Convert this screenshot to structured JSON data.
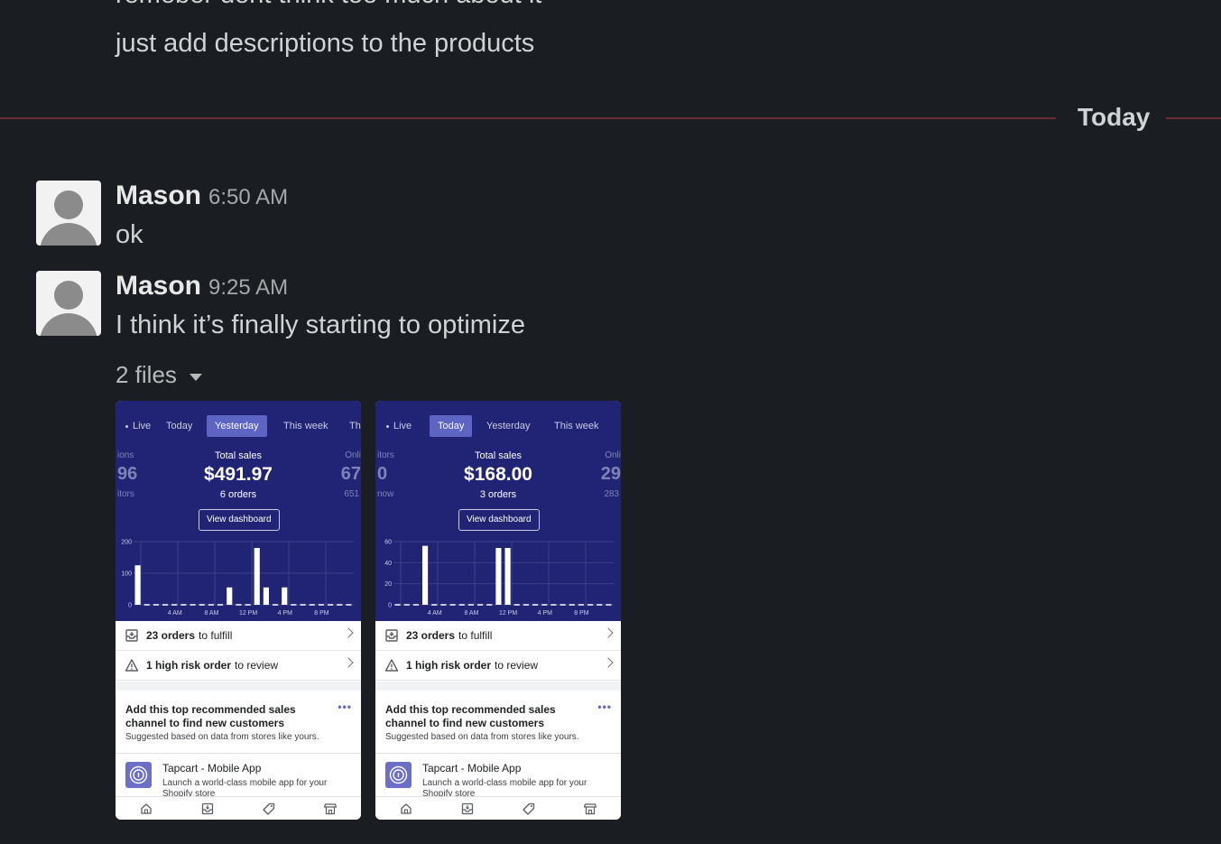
{
  "previous_messages": {
    "line1": "remeber dont think too much about it",
    "line2": "just add descriptions to the products"
  },
  "divider": {
    "label": "Today"
  },
  "messages": [
    {
      "author": "Mason",
      "time": "6:50 AM",
      "text": "ok"
    },
    {
      "author": "Mason",
      "time": "9:25 AM",
      "text": "I think it’s finally starting to optimize"
    }
  ],
  "files": {
    "label": "2 files"
  },
  "screenshots": [
    {
      "tabs": [
        "Live",
        "Today",
        "Yesterday",
        "This week",
        "Th"
      ],
      "active_tab": "Yesterday",
      "left_side": {
        "top": "ions",
        "value": "96",
        "bottom": "itors"
      },
      "right_side": {
        "top": "Onli",
        "value": "67",
        "bottom": "651"
      },
      "stat_label": "Total sales",
      "stat_value": "$491.97",
      "stat_orders": "6 orders",
      "dashboard_button": "View dashboard",
      "orders_row": {
        "bold": "23 orders",
        "rest": "to fulfill"
      },
      "risk_row": {
        "bold": "1 high risk order",
        "rest": "to review"
      },
      "recommendation": {
        "title": "Add this top recommended sales channel to find new customers",
        "subtitle": "Suggested based on data from stores like yours.",
        "more": "•••"
      },
      "app": {
        "name": "Tapcart - Mobile App",
        "description": "Launch a world-class mobile app for your Shopify store"
      },
      "chart_data": {
        "type": "bar",
        "title": "",
        "xlabel": "",
        "ylabel": "",
        "y_ticks": [
          "0",
          "100",
          "200"
        ],
        "x_ticks": [
          "4 AM",
          "8 AM",
          "12 PM",
          "4 PM",
          "8 PM"
        ],
        "ylim": [
          0,
          200
        ],
        "hours": [
          0,
          1,
          2,
          3,
          4,
          5,
          6,
          7,
          8,
          9,
          10,
          11,
          12,
          13,
          14,
          15,
          16,
          17,
          18,
          19,
          20,
          21,
          22,
          23
        ],
        "values": [
          125,
          0,
          0,
          0,
          0,
          0,
          0,
          0,
          0,
          0,
          55,
          0,
          0,
          180,
          55,
          0,
          55,
          0,
          0,
          0,
          0,
          0,
          0,
          0
        ]
      }
    },
    {
      "tabs": [
        "Live",
        "Today",
        "Yesterday",
        "This week"
      ],
      "active_tab": "Today",
      "left_side": {
        "top": "itors",
        "value": "0",
        "bottom": "now"
      },
      "right_side": {
        "top": "Onli",
        "value": "29",
        "bottom": "283"
      },
      "stat_label": "Total sales",
      "stat_value": "$168.00",
      "stat_orders": "3 orders",
      "dashboard_button": "View dashboard",
      "orders_row": {
        "bold": "23 orders",
        "rest": "to fulfill"
      },
      "risk_row": {
        "bold": "1 high risk order",
        "rest": "to review"
      },
      "recommendation": {
        "title": "Add this top recommended sales channel to find new customers",
        "subtitle": "Suggested based on data from stores like yours.",
        "more": "•••"
      },
      "app": {
        "name": "Tapcart - Mobile App",
        "description": "Launch a world-class mobile app for your Shopify store"
      },
      "chart_data": {
        "type": "bar",
        "title": "",
        "xlabel": "",
        "ylabel": "",
        "y_ticks": [
          "0",
          "20",
          "40",
          "60"
        ],
        "x_ticks": [
          "4 AM",
          "8 AM",
          "12 PM",
          "4 PM",
          "8 PM"
        ],
        "ylim": [
          0,
          60
        ],
        "hours": [
          0,
          1,
          2,
          3,
          4,
          5,
          6,
          7,
          8,
          9,
          10,
          11,
          12,
          13,
          14,
          15,
          16,
          17,
          18,
          19,
          20,
          21,
          22,
          23
        ],
        "values": [
          0,
          0,
          0,
          56,
          0,
          0,
          0,
          0,
          0,
          0,
          0,
          54,
          54,
          0,
          0,
          0,
          0,
          0,
          0,
          0,
          0,
          0,
          0,
          0
        ]
      }
    }
  ],
  "colors": {
    "background": "#1a1d21",
    "divider": "#6b2c38",
    "shopify_navy": "#212474",
    "active_tab": "#5e64c2"
  },
  "icons": [
    "user-avatar",
    "caret-down-icon",
    "inbox-icon",
    "warning-icon",
    "chevron-right-icon",
    "fingerprint-icon",
    "home-icon",
    "orders-icon",
    "tag-icon",
    "store-icon"
  ]
}
